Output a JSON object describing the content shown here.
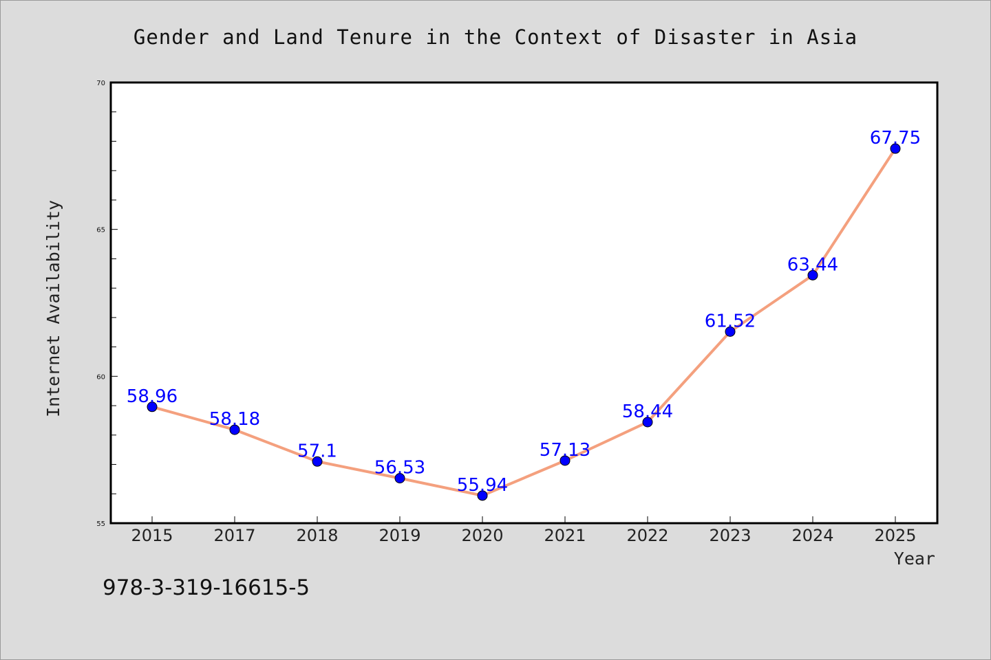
{
  "chart_data": {
    "type": "line",
    "title": "Gender and Land Tenure in the Context of Disaster in Asia",
    "xlabel": "Year",
    "ylabel": "Internet Availability",
    "categories": [
      "2015",
      "2017",
      "2018",
      "2019",
      "2020",
      "2021",
      "2022",
      "2023",
      "2024",
      "2025"
    ],
    "series": [
      {
        "values": [
          58.96,
          58.18,
          57.1,
          56.53,
          55.94,
          57.13,
          58.44,
          61.52,
          63.44,
          67.75
        ],
        "labels": [
          "58.96",
          "58.18",
          "57.1",
          "56.53",
          "55.94",
          "57.13",
          "58.44",
          "61.52",
          "63.44",
          "67.75"
        ]
      }
    ],
    "ylim": [
      55,
      70
    ],
    "yticks": [
      "55",
      "60",
      "65",
      "70"
    ],
    "yminor_step": 1,
    "grid": false,
    "line_color": "#f4a07e",
    "marker_color": "#0000ff",
    "label_color": "#0000ff"
  },
  "footer": {
    "code": "978-3-319-16615-5"
  }
}
